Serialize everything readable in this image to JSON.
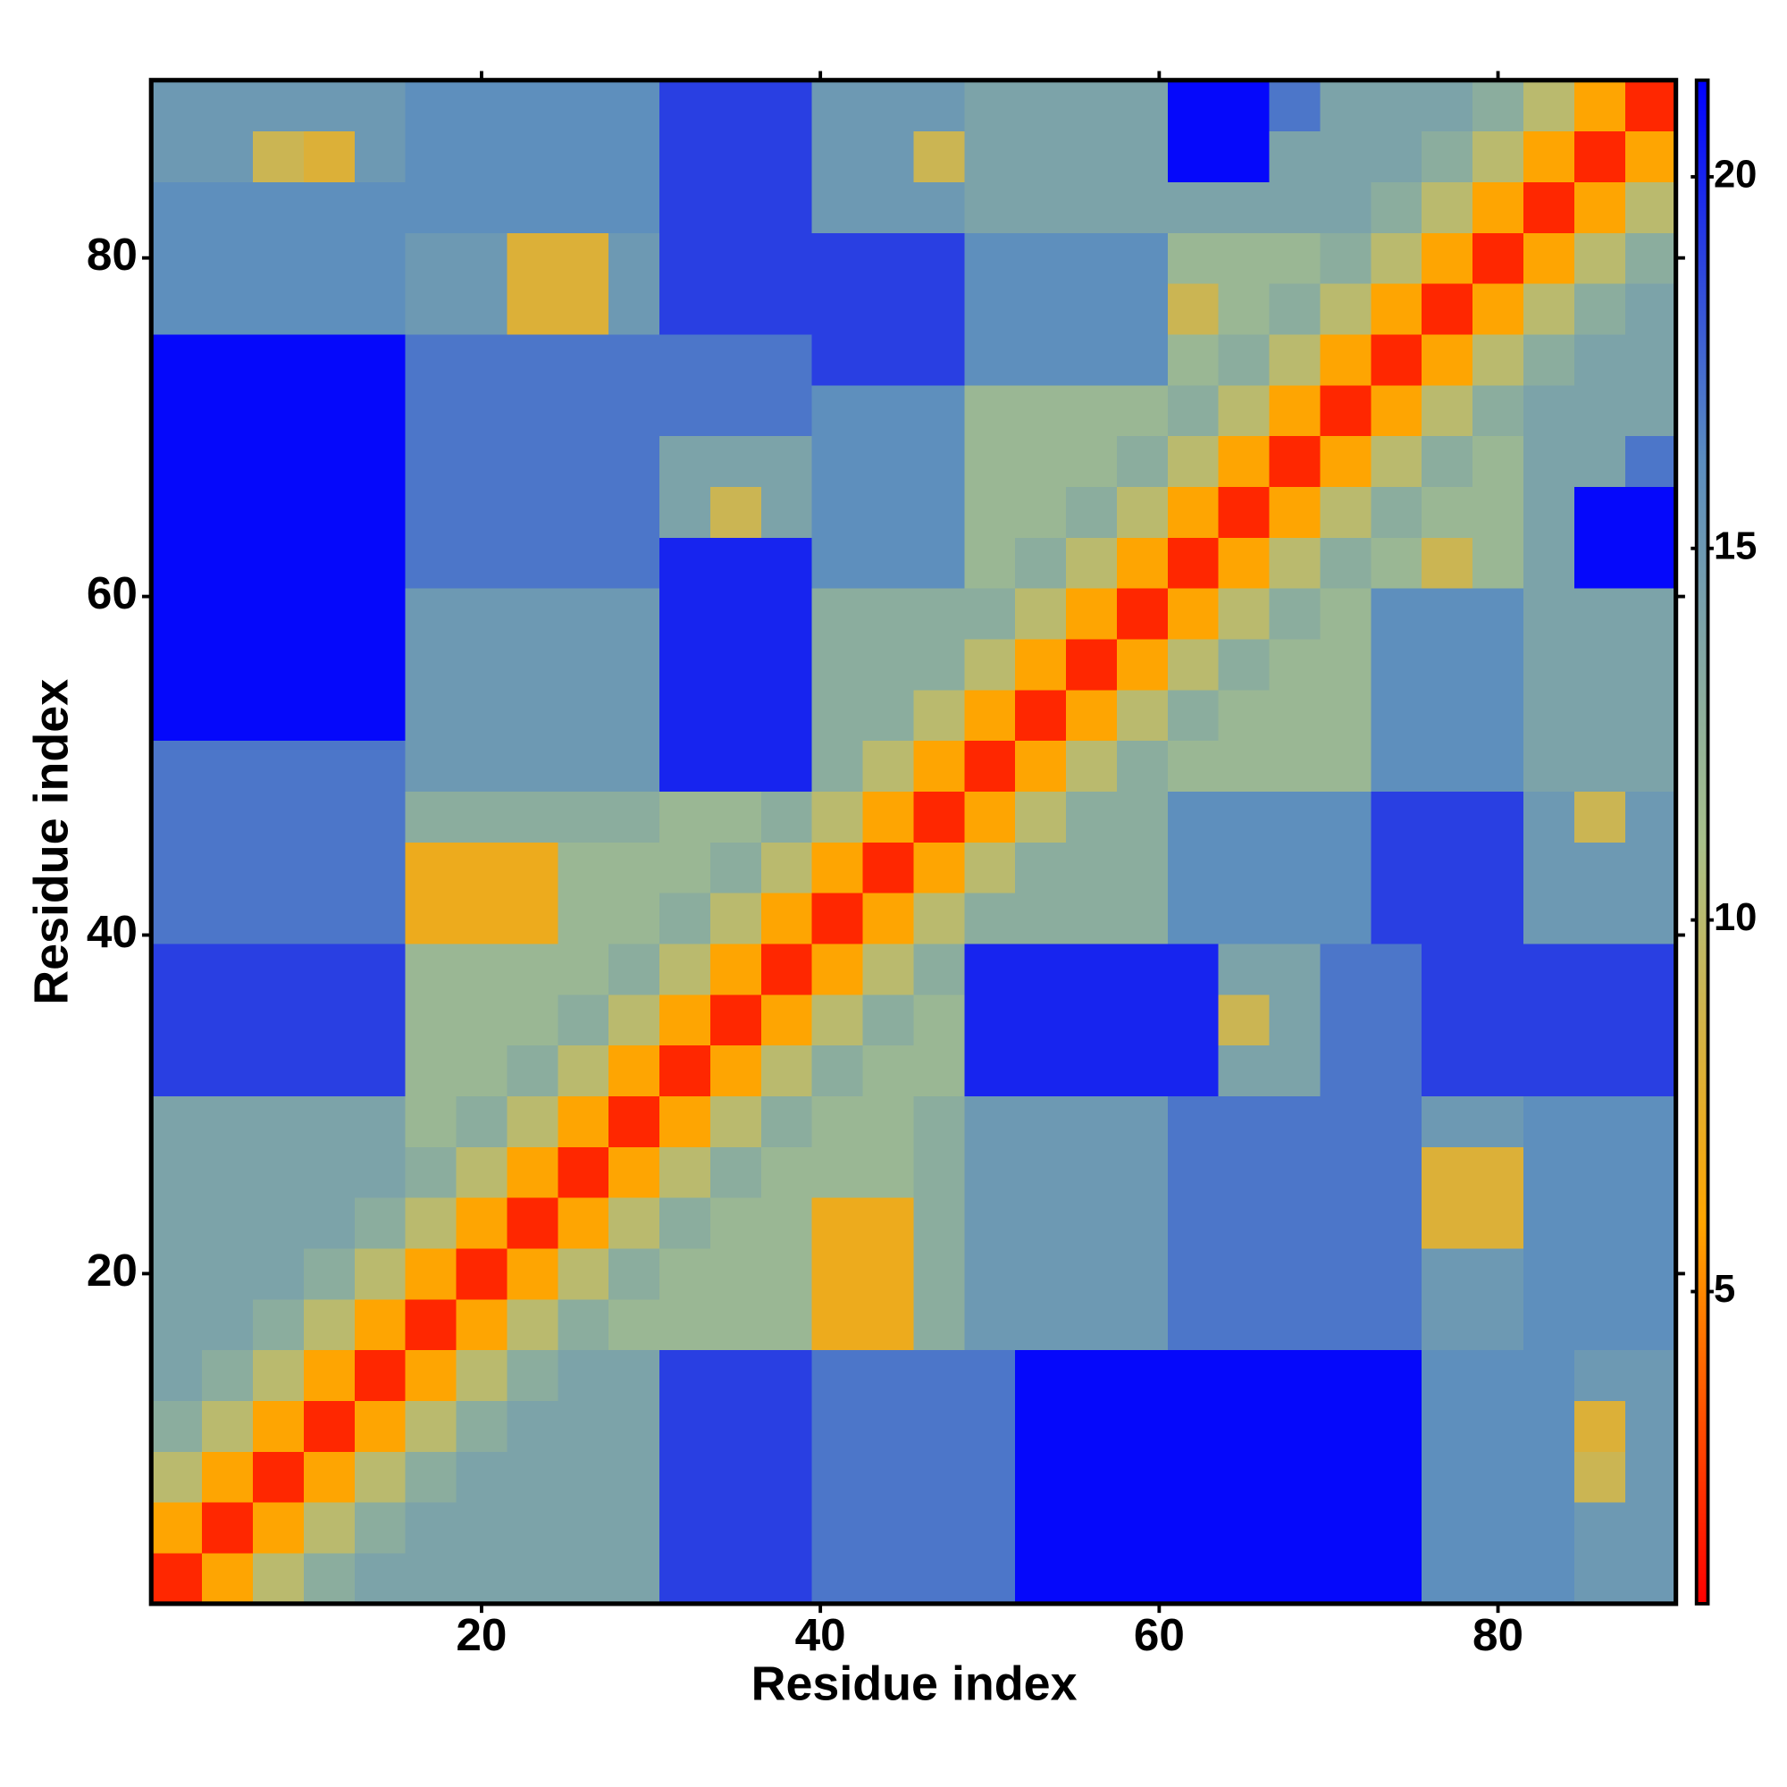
{
  "chart_data": {
    "type": "heatmap",
    "x_label": "Residue index",
    "y_label": "Residue index",
    "xbins": [
      0.5,
      3.5,
      6.5,
      9.5,
      12.5,
      15.5,
      18.5,
      21.5,
      24.5,
      27.5,
      30.5,
      33.5,
      36.5,
      39.5,
      42.5,
      45.5,
      48.5,
      51.5,
      54.5,
      57.5,
      60.5,
      63.5,
      66.5,
      69.5,
      72.5,
      75.5,
      78.5,
      81.5,
      84.5,
      87.5,
      90.5
    ],
    "ybins": [
      0.5,
      3.5,
      6.5,
      9.5,
      12.5,
      15.5,
      18.5,
      21.5,
      24.5,
      27.5,
      30.5,
      33.5,
      36.5,
      39.5,
      42.5,
      45.5,
      48.5,
      51.5,
      54.5,
      57.5,
      60.5,
      63.5,
      66.5,
      69.5,
      72.5,
      75.5,
      78.5,
      81.5,
      84.5,
      87.5,
      90.5
    ],
    "xlim": [
      0.5,
      90.5
    ],
    "ylim": [
      0.5,
      90.5
    ],
    "xticks": [
      20,
      40,
      60,
      80
    ],
    "yticks": [
      20,
      40,
      60,
      80
    ],
    "clim": [
      0.8,
      21.3
    ],
    "cticks": [
      5,
      10,
      15,
      20
    ],
    "colors": [
      "#ff0000",
      "#ffa500",
      "#a8c08a",
      "#5b8dbf",
      "#0000ff"
    ],
    "values": [
      [
        2,
        6,
        10,
        13,
        14,
        14,
        14,
        14,
        14,
        14,
        19,
        19,
        19,
        17,
        17,
        17,
        17,
        21,
        21,
        21,
        21,
        21,
        21,
        21,
        21,
        16,
        16,
        16,
        15,
        15
      ],
      [
        6,
        2,
        6,
        10,
        13,
        14,
        14,
        14,
        14,
        14,
        19,
        19,
        19,
        17,
        17,
        17,
        17,
        21,
        21,
        21,
        21,
        21,
        21,
        21,
        21,
        16,
        16,
        16,
        15,
        15
      ],
      [
        10,
        6,
        2,
        6,
        10,
        13,
        14,
        14,
        14,
        14,
        19,
        19,
        19,
        17,
        17,
        17,
        17,
        21,
        21,
        21,
        21,
        21,
        21,
        21,
        21,
        16,
        16,
        16,
        9,
        15
      ],
      [
        13,
        10,
        6,
        2,
        6,
        10,
        13,
        14,
        14,
        14,
        19,
        19,
        19,
        17,
        17,
        17,
        17,
        21,
        21,
        21,
        21,
        21,
        21,
        21,
        21,
        16,
        16,
        16,
        8,
        15
      ],
      [
        14,
        13,
        10,
        6,
        2,
        6,
        10,
        13,
        14,
        14,
        19,
        19,
        19,
        17,
        17,
        17,
        17,
        21,
        21,
        21,
        21,
        21,
        21,
        21,
        21,
        16,
        16,
        16,
        15,
        15
      ],
      [
        14,
        14,
        13,
        10,
        6,
        2,
        6,
        10,
        13,
        12,
        12,
        12,
        12,
        7,
        7,
        13,
        15,
        15,
        15,
        15,
        17,
        17,
        17,
        17,
        17,
        15,
        15,
        16,
        16,
        16
      ],
      [
        14,
        14,
        14,
        13,
        10,
        6,
        2,
        6,
        10,
        13,
        12,
        12,
        12,
        7,
        7,
        13,
        15,
        15,
        15,
        15,
        17,
        17,
        17,
        17,
        17,
        15,
        15,
        16,
        16,
        16
      ],
      [
        14,
        14,
        14,
        14,
        13,
        10,
        6,
        2,
        6,
        10,
        13,
        12,
        12,
        7,
        7,
        13,
        15,
        15,
        15,
        15,
        17,
        17,
        17,
        17,
        17,
        8,
        8,
        16,
        16,
        16
      ],
      [
        14,
        14,
        14,
        14,
        14,
        13,
        10,
        6,
        2,
        6,
        10,
        13,
        12,
        12,
        12,
        13,
        15,
        15,
        15,
        15,
        17,
        17,
        17,
        17,
        17,
        8,
        8,
        16,
        16,
        16
      ],
      [
        14,
        14,
        14,
        14,
        14,
        12,
        13,
        10,
        6,
        2,
        6,
        10,
        13,
        12,
        12,
        13,
        15,
        15,
        15,
        15,
        17,
        17,
        17,
        17,
        17,
        15,
        15,
        16,
        16,
        16
      ],
      [
        19,
        19,
        19,
        19,
        19,
        12,
        12,
        13,
        10,
        6,
        2,
        6,
        10,
        13,
        12,
        12,
        20,
        20,
        20,
        20,
        20,
        14,
        14,
        17,
        17,
        19,
        19,
        19,
        19,
        19
      ],
      [
        19,
        19,
        19,
        19,
        19,
        12,
        12,
        12,
        13,
        10,
        6,
        2,
        6,
        10,
        13,
        12,
        20,
        20,
        20,
        20,
        20,
        9,
        14,
        17,
        17,
        19,
        19,
        19,
        19,
        19
      ],
      [
        19,
        19,
        19,
        19,
        19,
        12,
        12,
        12,
        12,
        13,
        10,
        6,
        2,
        6,
        10,
        13,
        20,
        20,
        20,
        20,
        20,
        14,
        14,
        17,
        17,
        19,
        19,
        19,
        19,
        19
      ],
      [
        17,
        17,
        17,
        17,
        17,
        7,
        7,
        7,
        12,
        12,
        13,
        10,
        6,
        2,
        6,
        10,
        13,
        13,
        13,
        13,
        16,
        16,
        16,
        16,
        19,
        19,
        19,
        15,
        15,
        15
      ],
      [
        17,
        17,
        17,
        17,
        17,
        7,
        7,
        7,
        12,
        12,
        12,
        13,
        10,
        6,
        2,
        6,
        10,
        13,
        13,
        13,
        16,
        16,
        16,
        16,
        19,
        19,
        19,
        15,
        15,
        15
      ],
      [
        17,
        17,
        17,
        17,
        17,
        13,
        13,
        13,
        13,
        13,
        12,
        12,
        13,
        10,
        6,
        2,
        6,
        10,
        13,
        13,
        16,
        16,
        16,
        16,
        19,
        19,
        19,
        15,
        9,
        15
      ],
      [
        17,
        17,
        17,
        17,
        17,
        15,
        15,
        15,
        15,
        15,
        20,
        20,
        20,
        13,
        10,
        6,
        2,
        6,
        10,
        13,
        12,
        12,
        12,
        12,
        16,
        16,
        16,
        14,
        14,
        14
      ],
      [
        21,
        21,
        21,
        21,
        21,
        15,
        15,
        15,
        15,
        15,
        20,
        20,
        20,
        13,
        13,
        10,
        6,
        2,
        6,
        10,
        13,
        12,
        12,
        12,
        16,
        16,
        16,
        14,
        14,
        14
      ],
      [
        21,
        21,
        21,
        21,
        21,
        15,
        15,
        15,
        15,
        15,
        20,
        20,
        20,
        13,
        13,
        13,
        10,
        6,
        2,
        6,
        10,
        13,
        12,
        12,
        16,
        16,
        16,
        14,
        14,
        14
      ],
      [
        21,
        21,
        21,
        21,
        21,
        15,
        15,
        15,
        15,
        15,
        20,
        20,
        20,
        13,
        13,
        13,
        13,
        10,
        6,
        2,
        6,
        10,
        13,
        12,
        16,
        16,
        16,
        14,
        14,
        14
      ],
      [
        21,
        21,
        21,
        21,
        21,
        17,
        17,
        17,
        17,
        17,
        20,
        20,
        20,
        16,
        16,
        16,
        12,
        13,
        10,
        6,
        2,
        6,
        10,
        13,
        12,
        9,
        12,
        14,
        21,
        21
      ],
      [
        21,
        21,
        21,
        21,
        21,
        17,
        17,
        17,
        17,
        17,
        14,
        9,
        14,
        16,
        16,
        16,
        12,
        12,
        13,
        10,
        6,
        2,
        6,
        10,
        13,
        12,
        12,
        14,
        21,
        21
      ],
      [
        21,
        21,
        21,
        21,
        21,
        17,
        17,
        17,
        17,
        17,
        14,
        14,
        14,
        16,
        16,
        16,
        12,
        12,
        12,
        13,
        10,
        6,
        2,
        6,
        10,
        13,
        12,
        14,
        14,
        17
      ],
      [
        21,
        21,
        21,
        21,
        21,
        17,
        17,
        17,
        17,
        17,
        17,
        17,
        17,
        16,
        16,
        16,
        12,
        12,
        12,
        12,
        13,
        10,
        6,
        2,
        6,
        10,
        13,
        14,
        14,
        14
      ],
      [
        21,
        21,
        21,
        21,
        21,
        17,
        17,
        17,
        17,
        17,
        17,
        17,
        17,
        19,
        19,
        19,
        16,
        16,
        16,
        16,
        12,
        13,
        10,
        6,
        2,
        6,
        10,
        13,
        14,
        14
      ],
      [
        16,
        16,
        16,
        16,
        16,
        15,
        15,
        8,
        8,
        15,
        19,
        19,
        19,
        19,
        19,
        19,
        16,
        16,
        16,
        16,
        9,
        12,
        13,
        10,
        6,
        2,
        6,
        10,
        13,
        14
      ],
      [
        16,
        16,
        16,
        16,
        16,
        15,
        15,
        8,
        8,
        15,
        19,
        19,
        19,
        19,
        19,
        19,
        16,
        16,
        16,
        16,
        12,
        12,
        12,
        13,
        10,
        6,
        2,
        6,
        10,
        13
      ],
      [
        16,
        16,
        16,
        16,
        16,
        16,
        16,
        16,
        16,
        16,
        19,
        19,
        19,
        15,
        15,
        15,
        14,
        14,
        14,
        14,
        14,
        14,
        14,
        14,
        13,
        10,
        6,
        2,
        6,
        10
      ],
      [
        15,
        15,
        9,
        8,
        15,
        16,
        16,
        16,
        16,
        16,
        19,
        19,
        19,
        15,
        15,
        9,
        14,
        14,
        14,
        14,
        21,
        21,
        14,
        14,
        14,
        13,
        10,
        6,
        2,
        6
      ],
      [
        15,
        15,
        15,
        15,
        15,
        16,
        16,
        16,
        16,
        16,
        19,
        19,
        19,
        15,
        15,
        15,
        14,
        14,
        14,
        14,
        21,
        21,
        17,
        14,
        14,
        14,
        13,
        10,
        6,
        2
      ]
    ]
  }
}
